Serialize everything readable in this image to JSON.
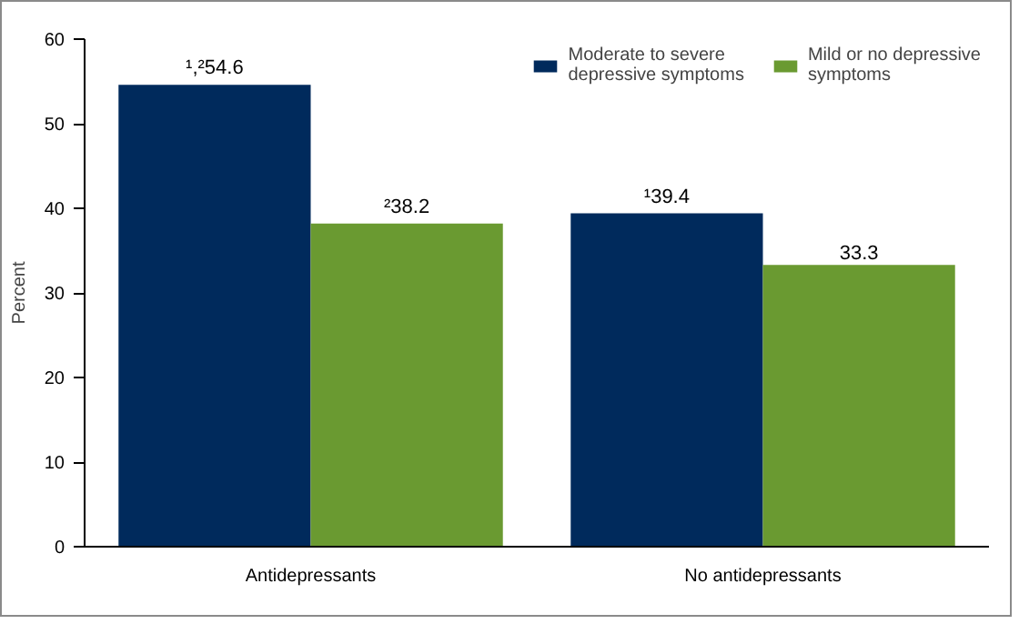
{
  "chart_data": {
    "type": "bar",
    "categories": [
      "Antidepressants",
      "No antidepressants"
    ],
    "ylabel": "Percent",
    "ylim": [
      0,
      60
    ],
    "yticks": [
      0,
      10,
      20,
      30,
      40,
      50,
      60
    ],
    "grid": false,
    "legend": "top right",
    "series": [
      {
        "name": "Moderate to severe depressive symptoms",
        "color": "#002a5c",
        "values": [
          54.6,
          39.4
        ],
        "value_labels": [
          "¹,²54.6",
          "¹39.4"
        ]
      },
      {
        "name": "Mild or no depressive symptoms",
        "color": "#6a9a31",
        "values": [
          38.2,
          33.3
        ],
        "value_labels": [
          "²38.2",
          "33.3"
        ]
      }
    ]
  }
}
